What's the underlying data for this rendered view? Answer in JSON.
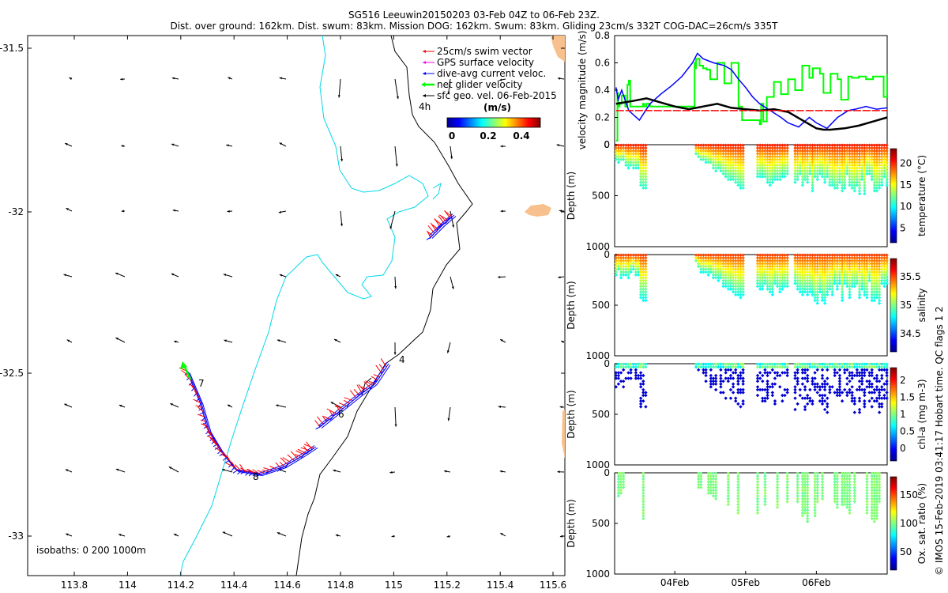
{
  "header": {
    "line1": "SG516 Leeuwin20150203 03-Feb 04Z to 06-Feb 23Z.",
    "line2": "Dist. over ground: 162km. Dist. swum: 83km. Mission DOG: 162km. Swum: 83km. Gliding 23cm/s 332T COG-DAC=26cm/s 335T"
  },
  "colors": {
    "coast": "#ff0000",
    "isobath_200": "#00d8e8",
    "isobath_1000": "#000000",
    "swim": "#ff0000",
    "gps": "#ff00ff",
    "dac": "#0000ff",
    "net": "#00ff00",
    "geo": "#000000",
    "land": "#f8c08c"
  },
  "map": {
    "x_ticks": [
      "113.8",
      "114",
      "114.2",
      "114.4",
      "114.6",
      "114.8",
      "115",
      "115.2",
      "115.4",
      "115.6"
    ],
    "y_ticks": [
      "-31.5",
      "-32",
      "-32.5",
      "-33"
    ],
    "isobaths_label": "isobaths: 0   200  1000m",
    "mark_7": "7",
    "mark_4": "4",
    "mark_6": "6",
    "mark_8": "8",
    "mark_4h": "4h",
    "legend": [
      {
        "label": "25cm/s swim vector",
        "color": "#ff0000"
      },
      {
        "label": "GPS surface velocity",
        "color": "#ff00ff"
      },
      {
        "label": "dive-avg current veloc.",
        "color": "#0000ff"
      },
      {
        "label": "net glider velocity",
        "color": "#00ff00"
      },
      {
        "label": "sfc geo. vel. 06-Feb-2015",
        "color": "#000000"
      }
    ],
    "colorbar_title": "(m/s)",
    "colorbar_ticks": [
      "0",
      "0.2",
      "0.4"
    ]
  },
  "chart_data": [
    {
      "type": "line",
      "ylabel": "velocity magnitude (m/s)",
      "ylim": [
        0,
        0.8
      ],
      "y_ticks": [
        "0",
        "0.2",
        "0.4",
        "0.6",
        "0.8"
      ],
      "xlim": [
        3.15,
        7.0
      ],
      "series": [
        {
          "name": "net glider velocity",
          "color": "#00ff00",
          "x": [
            3.17,
            3.19,
            3.2,
            3.22,
            3.25,
            3.3,
            3.33,
            3.35,
            3.37,
            3.52,
            3.55,
            3.57,
            3.6,
            3.65,
            4.28,
            4.29,
            4.3,
            4.35,
            4.4,
            4.45,
            4.5,
            4.6,
            4.7,
            4.8,
            4.9,
            4.95,
            5.2,
            5.22,
            5.25,
            5.3,
            5.4,
            5.5,
            5.6,
            5.7,
            5.8,
            5.9,
            5.95,
            6.05,
            6.1,
            6.2,
            6.3,
            6.35,
            6.45,
            6.5,
            6.6,
            6.7,
            6.8,
            6.9,
            6.95,
            7.0
          ],
          "y": [
            0.03,
            0.38,
            0.28,
            0.3,
            0.36,
            0.28,
            0.44,
            0.47,
            0.28,
            0.28,
            0.3,
            0.28,
            0.3,
            0.28,
            0.6,
            0.56,
            0.63,
            0.58,
            0.56,
            0.55,
            0.48,
            0.6,
            0.45,
            0.6,
            0.28,
            0.18,
            0.15,
            0.3,
            0.17,
            0.35,
            0.46,
            0.37,
            0.48,
            0.4,
            0.58,
            0.49,
            0.56,
            0.52,
            0.38,
            0.52,
            0.48,
            0.33,
            0.5,
            0.49,
            0.5,
            0.48,
            0.5,
            0.5,
            0.35,
            0.52
          ]
        },
        {
          "name": "dive-avg current veloc.",
          "color": "#0000ff",
          "x": [
            3.17,
            3.2,
            3.25,
            3.35,
            3.5,
            3.65,
            3.8,
            3.95,
            4.1,
            4.25,
            4.32,
            4.4,
            4.55,
            4.7,
            4.8,
            4.9,
            5.0,
            5.1,
            5.2,
            5.35,
            5.5,
            5.6,
            5.75,
            5.9,
            6.0,
            6.15,
            6.3,
            6.45,
            6.55,
            6.7,
            6.85,
            7.0
          ],
          "y": [
            0.42,
            0.33,
            0.4,
            0.25,
            0.18,
            0.3,
            0.37,
            0.43,
            0.5,
            0.6,
            0.67,
            0.63,
            0.6,
            0.58,
            0.55,
            0.48,
            0.42,
            0.35,
            0.3,
            0.25,
            0.2,
            0.16,
            0.13,
            0.2,
            0.16,
            0.12,
            0.2,
            0.25,
            0.26,
            0.28,
            0.26,
            0.27
          ]
        },
        {
          "name": "sfc geo. vel.",
          "color": "#000000",
          "x": [
            3.17,
            3.4,
            3.6,
            3.8,
            4.0,
            4.2,
            4.4,
            4.6,
            4.8,
            5.0,
            5.2,
            5.4,
            5.6,
            5.8,
            6.0,
            6.1,
            6.2,
            6.4,
            6.6,
            6.8,
            7.0
          ],
          "y": [
            0.3,
            0.32,
            0.34,
            0.31,
            0.28,
            0.26,
            0.28,
            0.3,
            0.27,
            0.26,
            0.25,
            0.26,
            0.24,
            0.18,
            0.12,
            0.11,
            0.11,
            0.12,
            0.14,
            0.17,
            0.2
          ]
        },
        {
          "name": "swim vector",
          "color": "#ff0000",
          "x": [
            3.17,
            7.0
          ],
          "y": [
            0.25,
            0.25
          ]
        }
      ]
    },
    {
      "type": "scatter",
      "ylabel": "Depth (m)",
      "ylim": [
        1000,
        0
      ],
      "y_ticks": [
        "0",
        "500",
        "1000"
      ],
      "colorbar_label": "temperature (°C)",
      "colorbar_ticks": [
        "5",
        "10",
        "15",
        "20"
      ],
      "colormap": "jet"
    },
    {
      "type": "scatter",
      "ylabel": "Depth (m)",
      "ylim": [
        1000,
        0
      ],
      "y_ticks": [
        "0",
        "500",
        "1000"
      ],
      "colorbar_label": "salinity",
      "colorbar_ticks": [
        "34.5",
        "35",
        "35.5"
      ],
      "colormap": "jet"
    },
    {
      "type": "scatter",
      "ylabel": "Depth (m)",
      "ylim": [
        1000,
        0
      ],
      "y_ticks": [
        "0",
        "500",
        "1000"
      ],
      "colorbar_label": "chl-a (mg m-3)",
      "colorbar_ticks": [
        "0",
        "0.5",
        "1",
        "1.5",
        "2"
      ],
      "colormap": "jet"
    },
    {
      "type": "scatter",
      "ylabel": "Depth (m)",
      "ylim": [
        1000,
        0
      ],
      "y_ticks": [
        "0",
        "500",
        "1000"
      ],
      "colorbar_label": "Ox. sat. ratio (%)",
      "colorbar_ticks": [
        "50",
        "100",
        "150"
      ],
      "colormap": "jet",
      "x_ticks": [
        "04Feb",
        "05Feb",
        "06Feb"
      ]
    }
  ],
  "footer": "© IMOS 15-Feb-2019 03:41:17 Hobart time. QC flags 1  2"
}
